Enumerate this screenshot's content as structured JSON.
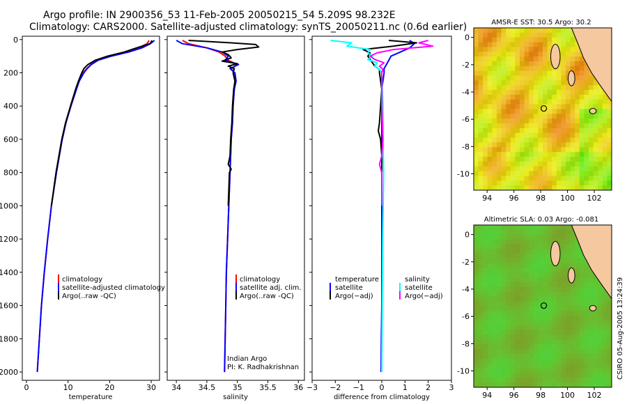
{
  "header": {
    "line1": "Argo profile: IN 2900356_53 11-Feb-2005 20050215_54 5.209S 98.232E",
    "line2": "Climatology: CARS2000. Satellite-adjusted climatology: synTS_20050211.nc (0.6d earlier)"
  },
  "colors": {
    "red": "#ff0000",
    "blue": "#0000ff",
    "black": "#000000",
    "cyan": "#00ffff",
    "magenta": "#ff00ff",
    "land": "#f5c8a0"
  },
  "chart_data": [
    {
      "type": "line",
      "id": "temperature",
      "xlabel": "temperature",
      "ylabel": "",
      "xlim": [
        -1,
        32
      ],
      "ylim": [
        2050,
        -20
      ],
      "xticks": [
        0,
        10,
        20,
        30
      ],
      "xtick_labels": [
        "0",
        "10",
        "20",
        "30"
      ],
      "yticks": [
        0,
        200,
        400,
        600,
        800,
        1000,
        1200,
        1400,
        1600,
        1800,
        2000
      ],
      "ytick_labels": [
        "0",
        "200",
        "400",
        "600",
        "800",
        "1000",
        "1200",
        "1400",
        "1600",
        "1800",
        "2000"
      ],
      "legend": [
        "climatology",
        "satellite-adjusted climatology",
        "Argo(..raw -QC)"
      ],
      "series": [
        {
          "name": "climatology",
          "color": "red",
          "depth": [
            5,
            25,
            50,
            75,
            100,
            125,
            150,
            175,
            200,
            250,
            300,
            400,
            500,
            600,
            800,
            1000,
            1200,
            1400,
            1600,
            1800,
            2000
          ],
          "values": [
            29.5,
            29,
            27,
            24,
            20,
            17,
            15.5,
            14.5,
            13.6,
            12.6,
            12,
            10.7,
            9.5,
            8.6,
            7.2,
            6,
            5.1,
            4.3,
            3.6,
            3.1,
            2.6
          ]
        },
        {
          "name": "satellite-adjusted climatology",
          "color": "blue",
          "depth": [
            5,
            25,
            50,
            75,
            100,
            125,
            150,
            175,
            200,
            250,
            300,
            400,
            500,
            600,
            800,
            1000,
            1200,
            1400,
            1600,
            1800,
            2000
          ],
          "values": [
            30.8,
            29.8,
            27.8,
            24.6,
            20.4,
            17.2,
            15.6,
            14.6,
            13.8,
            12.7,
            12,
            10.7,
            9.5,
            8.6,
            7.2,
            6,
            5.1,
            4.3,
            3.6,
            3.1,
            2.6
          ]
        },
        {
          "name": "Argo(..raw -QC)",
          "color": "black",
          "depth": [
            5,
            25,
            50,
            75,
            100,
            125,
            150,
            175,
            200,
            250,
            300,
            400,
            500,
            600,
            800,
            1000
          ],
          "values": [
            30.2,
            29.7,
            26.5,
            23.5,
            19.5,
            16.5,
            14.8,
            13.8,
            13.3,
            12.5,
            11.8,
            10.6,
            9.4,
            8.5,
            7.1,
            6
          ]
        }
      ]
    },
    {
      "type": "line",
      "id": "salinity",
      "xlabel": "salinity",
      "ylabel": "",
      "xlim": [
        33.85,
        36.1
      ],
      "ylim": [
        2050,
        -20
      ],
      "xticks": [
        34,
        34.5,
        35,
        35.5,
        36
      ],
      "xtick_labels": [
        "34",
        "34.5",
        "35",
        "35.5",
        "36"
      ],
      "legend": [
        "climatology",
        "satellite adj. clim.",
        "Argo(..raw -QC)"
      ],
      "annotations": [
        "Indian Argo",
        "PI: K. Radhakrishnan"
      ],
      "series": [
        {
          "name": "climatology",
          "color": "red",
          "depth": [
            5,
            25,
            50,
            75,
            100,
            125,
            150,
            175,
            200,
            250,
            300,
            400,
            500,
            600,
            800,
            1000,
            1200,
            1400,
            1600,
            1800,
            2000
          ],
          "values": [
            34.1,
            34.2,
            34.5,
            34.7,
            34.8,
            34.85,
            35.0,
            34.9,
            34.95,
            34.97,
            34.95,
            34.93,
            34.92,
            34.9,
            34.88,
            34.86,
            34.84,
            34.82,
            34.81,
            34.8,
            34.79
          ]
        },
        {
          "name": "satellite adj. clim.",
          "color": "blue",
          "depth": [
            5,
            25,
            50,
            75,
            100,
            125,
            150,
            175,
            200,
            250,
            300,
            400,
            500,
            600,
            800,
            1000,
            1200,
            1400,
            1600,
            1800,
            2000
          ],
          "values": [
            34.0,
            34.1,
            34.5,
            34.75,
            34.85,
            34.8,
            35.02,
            34.88,
            34.96,
            34.98,
            34.95,
            34.93,
            34.92,
            34.9,
            34.88,
            34.86,
            34.84,
            34.82,
            34.81,
            34.8,
            34.79
          ]
        },
        {
          "name": "Argo(..raw -QC)",
          "color": "black",
          "depth": [
            5,
            20,
            30,
            45,
            60,
            75,
            90,
            110,
            130,
            145,
            160,
            175,
            200,
            250,
            300,
            400,
            500,
            600,
            700,
            750,
            780,
            800,
            1000
          ],
          "values": [
            34.2,
            34.9,
            35.3,
            35.35,
            35.0,
            34.75,
            34.85,
            34.9,
            34.75,
            35.0,
            34.85,
            34.95,
            34.93,
            34.96,
            34.94,
            34.92,
            34.91,
            34.89,
            34.88,
            34.85,
            34.9,
            34.87,
            34.85
          ]
        }
      ]
    },
    {
      "type": "line",
      "id": "difference",
      "xlabel": "difference from climatology",
      "ylabel": "",
      "xlim": [
        -3,
        3
      ],
      "ylim": [
        2050,
        -20
      ],
      "xticks": [
        -3,
        -2,
        -1,
        0,
        1,
        2,
        3
      ],
      "xtick_labels": [
        "−3",
        "−2",
        "−1",
        "0",
        "1",
        "2",
        "3"
      ],
      "legend_left": {
        "heading": "temperature",
        "items": [
          "satellite",
          "Argo(−adj)"
        ]
      },
      "legend_right": {
        "heading": "salinity",
        "items": [
          "satellite",
          "Argo(−adj)"
        ]
      },
      "series": [
        {
          "name": "temperature satellite",
          "color": "blue",
          "depth": [
            5,
            25,
            50,
            75,
            100,
            125,
            150,
            175,
            200,
            250,
            300,
            400,
            500,
            600,
            800,
            1000,
            1200,
            1400,
            1600,
            1800,
            2000
          ],
          "values": [
            1.2,
            1.4,
            1.2,
            0.8,
            0.4,
            0.3,
            0.2,
            0.1,
            0.1,
            0.05,
            0,
            0,
            0,
            0,
            0,
            0,
            0,
            0,
            0,
            -0.02,
            -0.03
          ]
        },
        {
          "name": "temperature Argo(-adj)",
          "color": "black",
          "depth": [
            5,
            20,
            40,
            60,
            80,
            100,
            120,
            140,
            160,
            180,
            200,
            300,
            400,
            500,
            550,
            600,
            700,
            800,
            1000
          ],
          "values": [
            0.3,
            1.5,
            0.5,
            -0.8,
            -0.5,
            -0.6,
            -0.5,
            -0.4,
            -0.3,
            -0.1,
            -0.1,
            0,
            -0.05,
            -0.1,
            -0.15,
            -0.05,
            0,
            0,
            0
          ]
        },
        {
          "name": "salinity satellite",
          "color": "cyan",
          "depth": [
            5,
            20,
            40,
            60,
            80,
            100,
            120,
            140,
            160,
            180,
            200,
            300,
            400,
            600,
            800,
            1000,
            1200,
            1400,
            1600,
            1800,
            2000
          ],
          "values": [
            -2.2,
            -1.3,
            -1.5,
            -0.5,
            -0.6,
            -0.4,
            -0.6,
            -0.2,
            -0.3,
            -0.1,
            0,
            0.02,
            0.05,
            0.05,
            0.08,
            0.06,
            0.04,
            0.03,
            0.02,
            0.01,
            0
          ]
        },
        {
          "name": "salinity Argo(-adj)",
          "color": "magenta",
          "depth": [
            5,
            20,
            40,
            60,
            80,
            100,
            120,
            140,
            160,
            180,
            200,
            300,
            400,
            600,
            700,
            750,
            800,
            1000
          ],
          "values": [
            2.0,
            1.6,
            2.2,
            0.5,
            -0.2,
            -0.5,
            -0.3,
            0.1,
            -0.1,
            0.05,
            0,
            0,
            0,
            0.05,
            0,
            -0.1,
            0,
            0
          ]
        }
      ]
    },
    {
      "type": "heatmap",
      "id": "sst-map",
      "title": "AMSR-E SST: 30.5 Argo: 30.2",
      "xticks": [
        94,
        96,
        98,
        100,
        102
      ],
      "yticks": [
        0,
        -2,
        -4,
        -6,
        -8,
        -10
      ],
      "xlim": [
        93,
        103.3
      ],
      "ylim": [
        -11.2,
        0.7
      ],
      "argo_position": {
        "lon": 98.232,
        "lat": -5.209
      }
    },
    {
      "type": "heatmap",
      "id": "sla-map",
      "title": "Altimetric SLA: 0.03 Argo: -0.081",
      "xticks": [
        94,
        96,
        98,
        100,
        102
      ],
      "yticks": [
        0,
        -2,
        -4,
        -6,
        -8,
        -10
      ],
      "xlim": [
        93,
        103.3
      ],
      "ylim": [
        -11.2,
        0.7
      ],
      "argo_position": {
        "lon": 98.232,
        "lat": -5.209
      }
    }
  ],
  "footer": {
    "credit": "CSIRO 05-Aug-2005 13:24:39"
  }
}
